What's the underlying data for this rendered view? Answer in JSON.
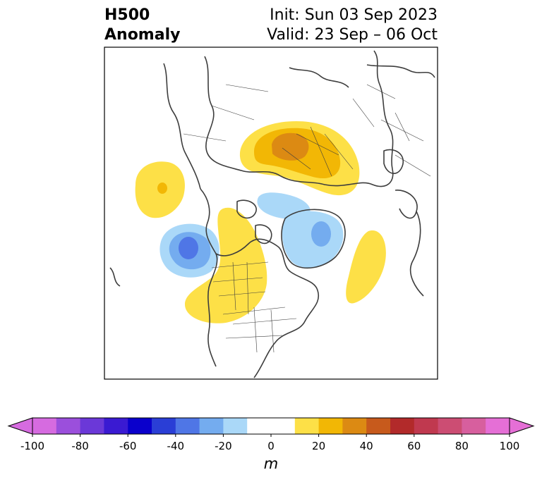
{
  "title": {
    "left_line1": "H500",
    "left_line2": "Anomaly",
    "right_line1": "Init: Sun 03 Sep 2023",
    "right_line2": "Valid: 23 Sep – 06 Oct"
  },
  "colorbar": {
    "unit": "m",
    "ticks": [
      -100,
      -80,
      -60,
      -40,
      -20,
      0,
      20,
      40,
      60,
      80,
      100
    ],
    "tick_labels": [
      "-100",
      "-80",
      "-60",
      "-40",
      "-20",
      "0",
      "20",
      "40",
      "60",
      "80",
      "100"
    ],
    "levels": [
      -100,
      -90,
      -80,
      -70,
      -60,
      -50,
      -40,
      -30,
      -20,
      -10,
      10,
      20,
      30,
      40,
      50,
      60,
      70,
      80,
      90,
      100
    ],
    "colors": [
      "#d66be0",
      "#9b4fdc",
      "#6b38d8",
      "#3a1ad2",
      "#0a00cc",
      "#2a3ed6",
      "#4f76e6",
      "#74acef",
      "#aad8f8",
      "#ffffff",
      "#fde047",
      "#f2b705",
      "#dc8a13",
      "#c75a1c",
      "#b22a2a",
      "#c0394f",
      "#cc4d73",
      "#d75f9e",
      "#e56fd6"
    ],
    "under_color": "#d66be0",
    "over_color": "#e56fd6",
    "extend": "both"
  },
  "map_anomalies": [
    {
      "name": "eurasia-positive",
      "sign": "positive",
      "peak_m": 40
    },
    {
      "name": "pacific-positive",
      "sign": "positive",
      "peak_m": 20
    },
    {
      "name": "northwest-canada-positive",
      "sign": "positive",
      "peak_m": 20
    },
    {
      "name": "atlantic-positive",
      "sign": "positive",
      "peak_m": 10
    },
    {
      "name": "gulf-of-alaska-negative",
      "sign": "negative",
      "peak_m": -40
    },
    {
      "name": "greenland-negative",
      "sign": "negative",
      "peak_m": -30
    },
    {
      "name": "arctic-negative",
      "sign": "negative",
      "peak_m": -10
    }
  ]
}
